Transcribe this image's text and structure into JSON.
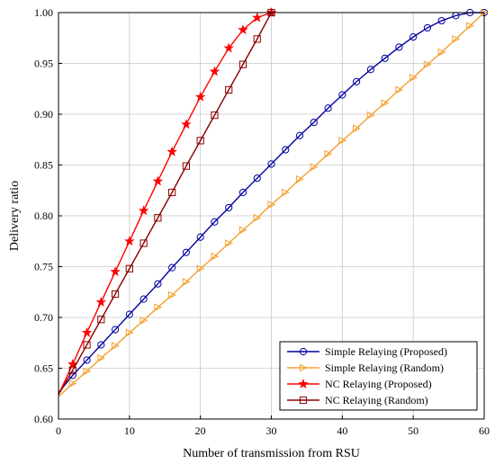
{
  "chart_data": {
    "type": "line",
    "title": "",
    "xlabel": "Number of transmission from RSU",
    "ylabel": "Delivery ratio",
    "xlim": [
      0,
      60
    ],
    "ylim": [
      0.6,
      1.0
    ],
    "x_ticks": [
      0,
      10,
      20,
      30,
      40,
      50,
      60
    ],
    "x_tick_labels": [
      "0",
      "10",
      "20",
      "30",
      "40",
      "50",
      "60"
    ],
    "y_ticks": [
      0.6,
      0.65,
      0.7,
      0.75,
      0.8,
      0.85,
      0.9,
      0.95,
      1.0
    ],
    "y_tick_labels": [
      "0.60",
      "0.65",
      "0.70",
      "0.75",
      "0.80",
      "0.85",
      "0.90",
      "0.95",
      "1.00"
    ],
    "grid": true,
    "legend_position": "bottom-right",
    "series": [
      {
        "name": "Simple Relaying (Proposed)",
        "color": "#0000a0",
        "marker": "circle",
        "x": [
          0,
          2,
          4,
          6,
          8,
          10,
          12,
          14,
          16,
          18,
          20,
          22,
          24,
          26,
          28,
          30,
          32,
          34,
          36,
          38,
          40,
          42,
          44,
          46,
          48,
          50,
          52,
          54,
          56,
          58,
          60
        ],
        "y": [
          0.626,
          0.643,
          0.658,
          0.673,
          0.688,
          0.703,
          0.718,
          0.733,
          0.749,
          0.764,
          0.779,
          0.794,
          0.808,
          0.823,
          0.837,
          0.851,
          0.865,
          0.879,
          0.892,
          0.906,
          0.919,
          0.932,
          0.944,
          0.955,
          0.966,
          0.976,
          0.985,
          0.992,
          0.997,
          1.0,
          1.0
        ]
      },
      {
        "name": "Simple Relaying (Random)",
        "color": "#f5a030",
        "marker": "triangle-right",
        "x": [
          0,
          2,
          4,
          6,
          8,
          10,
          12,
          14,
          16,
          18,
          20,
          22,
          24,
          26,
          28,
          30,
          32,
          34,
          36,
          38,
          40,
          42,
          44,
          46,
          48,
          50,
          52,
          54,
          56,
          58,
          60
        ],
        "y": [
          0.622,
          0.635,
          0.647,
          0.66,
          0.672,
          0.685,
          0.697,
          0.71,
          0.722,
          0.735,
          0.748,
          0.76,
          0.773,
          0.786,
          0.798,
          0.811,
          0.823,
          0.836,
          0.848,
          0.861,
          0.874,
          0.886,
          0.899,
          0.911,
          0.924,
          0.936,
          0.949,
          0.961,
          0.974,
          0.987,
          1.0
        ]
      },
      {
        "name": "NC Relaying (Proposed)",
        "color": "#ff0000",
        "marker": "star",
        "x": [
          0,
          2,
          4,
          6,
          8,
          10,
          12,
          14,
          16,
          18,
          20,
          22,
          24,
          26,
          28,
          30
        ],
        "y": [
          0.624,
          0.654,
          0.685,
          0.715,
          0.745,
          0.775,
          0.805,
          0.834,
          0.863,
          0.89,
          0.917,
          0.942,
          0.965,
          0.983,
          0.995,
          1.0
        ]
      },
      {
        "name": "NC Relaying (Random)",
        "color": "#8b0000",
        "marker": "square",
        "x": [
          0,
          2,
          4,
          6,
          8,
          10,
          12,
          14,
          16,
          18,
          20,
          22,
          24,
          26,
          28,
          30
        ],
        "y": [
          0.624,
          0.648,
          0.673,
          0.698,
          0.723,
          0.748,
          0.773,
          0.798,
          0.823,
          0.849,
          0.874,
          0.899,
          0.924,
          0.949,
          0.974,
          1.0
        ]
      }
    ]
  }
}
